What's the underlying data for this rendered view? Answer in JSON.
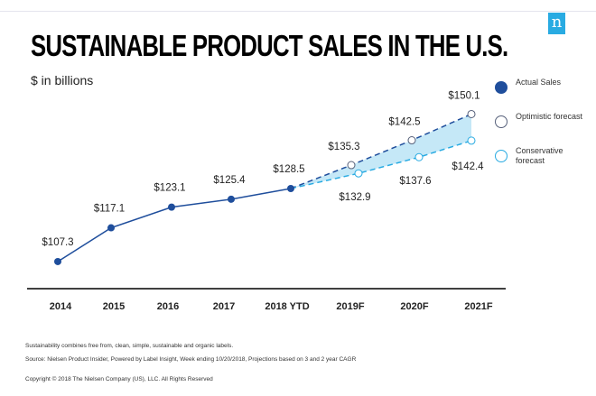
{
  "chart_data": {
    "type": "line",
    "title": "SUSTAINABLE PRODUCT SALES IN THE U.S.",
    "subtitle": "$ in billions",
    "categories": [
      "2014",
      "2015",
      "2016",
      "2017",
      "2018 YTD",
      "2019F",
      "2020F",
      "2021F"
    ],
    "series": [
      {
        "name": "Actual Sales",
        "color": "#1f4e9c",
        "x": [
          "2014",
          "2015",
          "2016",
          "2017",
          "2018 YTD"
        ],
        "values": [
          107.3,
          117.1,
          123.1,
          125.4,
          128.5
        ],
        "labels": [
          "$107.3",
          "$117.1",
          "$123.1",
          "$125.4",
          "$128.5"
        ]
      },
      {
        "name": "Optimistic forecast",
        "color": "#1f4e9c",
        "style": "dashed",
        "x": [
          "2018 YTD",
          "2019F",
          "2020F",
          "2021F"
        ],
        "values": [
          128.5,
          135.3,
          142.5,
          150.1
        ],
        "labels": [
          "",
          "$135.3",
          "$142.5",
          "$150.1"
        ]
      },
      {
        "name": "Conservative forecast",
        "color": "#29abe2",
        "style": "dashed",
        "x": [
          "2018 YTD",
          "2019F",
          "2020F",
          "2021F"
        ],
        "values": [
          128.5,
          132.9,
          137.6,
          142.4
        ],
        "labels": [
          "",
          "$132.9",
          "$137.6",
          "$142.4"
        ]
      }
    ],
    "band_fill": "#c5e8f7",
    "legend_placement": "right",
    "grid": false
  },
  "footnotes": {
    "note": "Sustainability combines free from, clean, simple, sustainable and organic labels.",
    "source": "Source: Nielsen Product Insider, Powered by Label Insight, Week ending 10/20/2018, Projections based on 3 and 2 year CAGR",
    "copyright": "Copyright © 2018 The Nielsen Company (US), LLC. All Rights Reserved"
  },
  "logo": {
    "text": "n",
    "color": "#29abe2"
  }
}
